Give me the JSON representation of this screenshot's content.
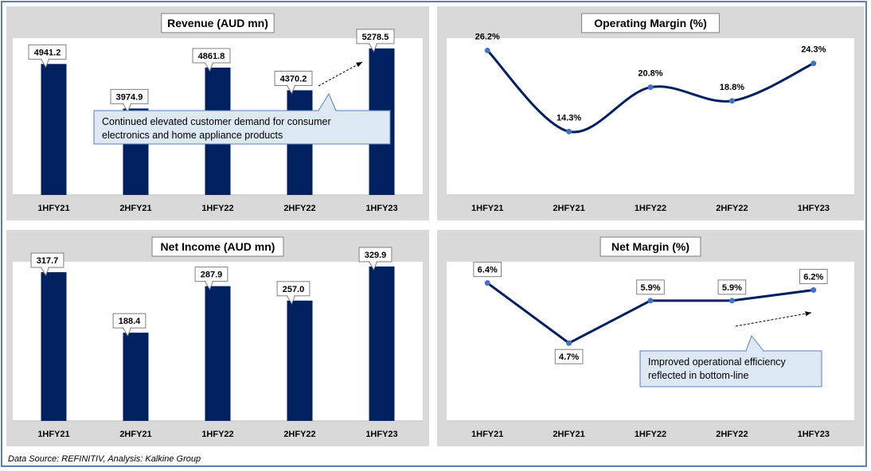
{
  "source_note": "Data Source: REFINITIV, Analysis: Kalkine Group",
  "colors": {
    "bar": "#002060",
    "line": "#002060",
    "marker": "#4472c4",
    "panel_bg": "#d9d9d9",
    "plot_bg": "#ffffff",
    "callout_bg": "#dde8f5",
    "callout_border": "#5b7fb5"
  },
  "chart_data": [
    {
      "type": "bar",
      "title": "Revenue (AUD mn)",
      "categories": [
        "1HFY21",
        "2HFY21",
        "1HFY22",
        "2HFY22",
        "1HFY23"
      ],
      "values": [
        4941.2,
        3974.9,
        4861.8,
        4370.2,
        5278.5
      ],
      "labels": [
        "4941.2",
        "3974.9",
        "4861.8",
        "4370.2",
        "5278.5"
      ],
      "ylim": [
        2100,
        5500
      ],
      "grid": false,
      "annotation": "Continued elevated customer demand for consumer electronics and home appliance products"
    },
    {
      "type": "line",
      "title": "Operating Margin (%)",
      "categories": [
        "1HFY21",
        "2HFY21",
        "1HFY22",
        "2HFY22",
        "1HFY23"
      ],
      "values": [
        26.2,
        14.3,
        20.8,
        18.8,
        24.3
      ],
      "labels": [
        "26.2%",
        "14.3%",
        "20.8%",
        "18.8%",
        "24.3%"
      ],
      "ylim": [
        5,
        28
      ],
      "grid": false,
      "smooth": true
    },
    {
      "type": "bar",
      "title": "Net Income (AUD mn)",
      "categories": [
        "1HFY21",
        "2HFY21",
        "1HFY22",
        "2HFY22",
        "1HFY23"
      ],
      "values": [
        317.7,
        188.4,
        287.9,
        257.0,
        329.9
      ],
      "labels": [
        "317.7",
        "188.4",
        "287.9",
        "257.0",
        "329.9"
      ],
      "ylim": [
        0,
        340
      ],
      "grid": false
    },
    {
      "type": "line",
      "title": "Net Margin (%)",
      "categories": [
        "1HFY21",
        "2HFY21",
        "1HFY22",
        "2HFY22",
        "1HFY23"
      ],
      "values": [
        6.4,
        4.7,
        5.9,
        5.9,
        6.2
      ],
      "labels": [
        "6.4%",
        "4.7%",
        "5.9%",
        "5.9%",
        "6.2%"
      ],
      "ylim": [
        2.5,
        7.0
      ],
      "grid": false,
      "smooth": false,
      "annotation": "Improved operational efficiency reflected in bottom-line"
    }
  ]
}
